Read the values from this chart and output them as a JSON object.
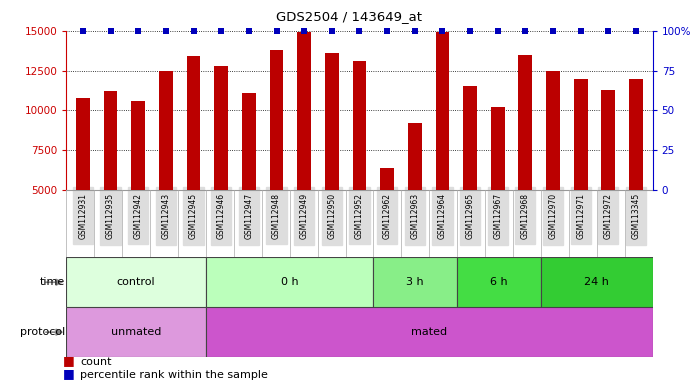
{
  "title": "GDS2504 / 143649_at",
  "samples": [
    "GSM112931",
    "GSM112935",
    "GSM112942",
    "GSM112943",
    "GSM112945",
    "GSM112946",
    "GSM112947",
    "GSM112948",
    "GSM112949",
    "GSM112950",
    "GSM112952",
    "GSM112962",
    "GSM112963",
    "GSM112964",
    "GSM112965",
    "GSM112967",
    "GSM112968",
    "GSM112970",
    "GSM112971",
    "GSM112972",
    "GSM113345"
  ],
  "counts": [
    10800,
    11200,
    10600,
    12500,
    13400,
    12800,
    11100,
    13800,
    14950,
    13600,
    13100,
    6400,
    9200,
    14950,
    11500,
    10200,
    13500,
    12500,
    12000,
    11300,
    12000
  ],
  "bar_color": "#bb0000",
  "dot_color": "#0000bb",
  "ylim_left": [
    5000,
    15000
  ],
  "yticks_left": [
    5000,
    7500,
    10000,
    12500,
    15000
  ],
  "ylim_right": [
    0,
    100
  ],
  "yticks_right": [
    0,
    25,
    50,
    75,
    100
  ],
  "time_groups": [
    {
      "label": "control",
      "start": 0,
      "end": 5,
      "color": "#ddffdd"
    },
    {
      "label": "0 h",
      "start": 5,
      "end": 11,
      "color": "#bbffbb"
    },
    {
      "label": "3 h",
      "start": 11,
      "end": 14,
      "color": "#88ee88"
    },
    {
      "label": "6 h",
      "start": 14,
      "end": 17,
      "color": "#44dd44"
    },
    {
      "label": "24 h",
      "start": 17,
      "end": 21,
      "color": "#33cc33"
    }
  ],
  "protocol_groups": [
    {
      "label": "unmated",
      "start": 0,
      "end": 5,
      "color": "#dd99dd"
    },
    {
      "label": "mated",
      "start": 5,
      "end": 21,
      "color": "#cc55cc"
    }
  ],
  "left_axis_color": "#cc0000",
  "right_axis_color": "#0000cc",
  "label_color": "#666666"
}
